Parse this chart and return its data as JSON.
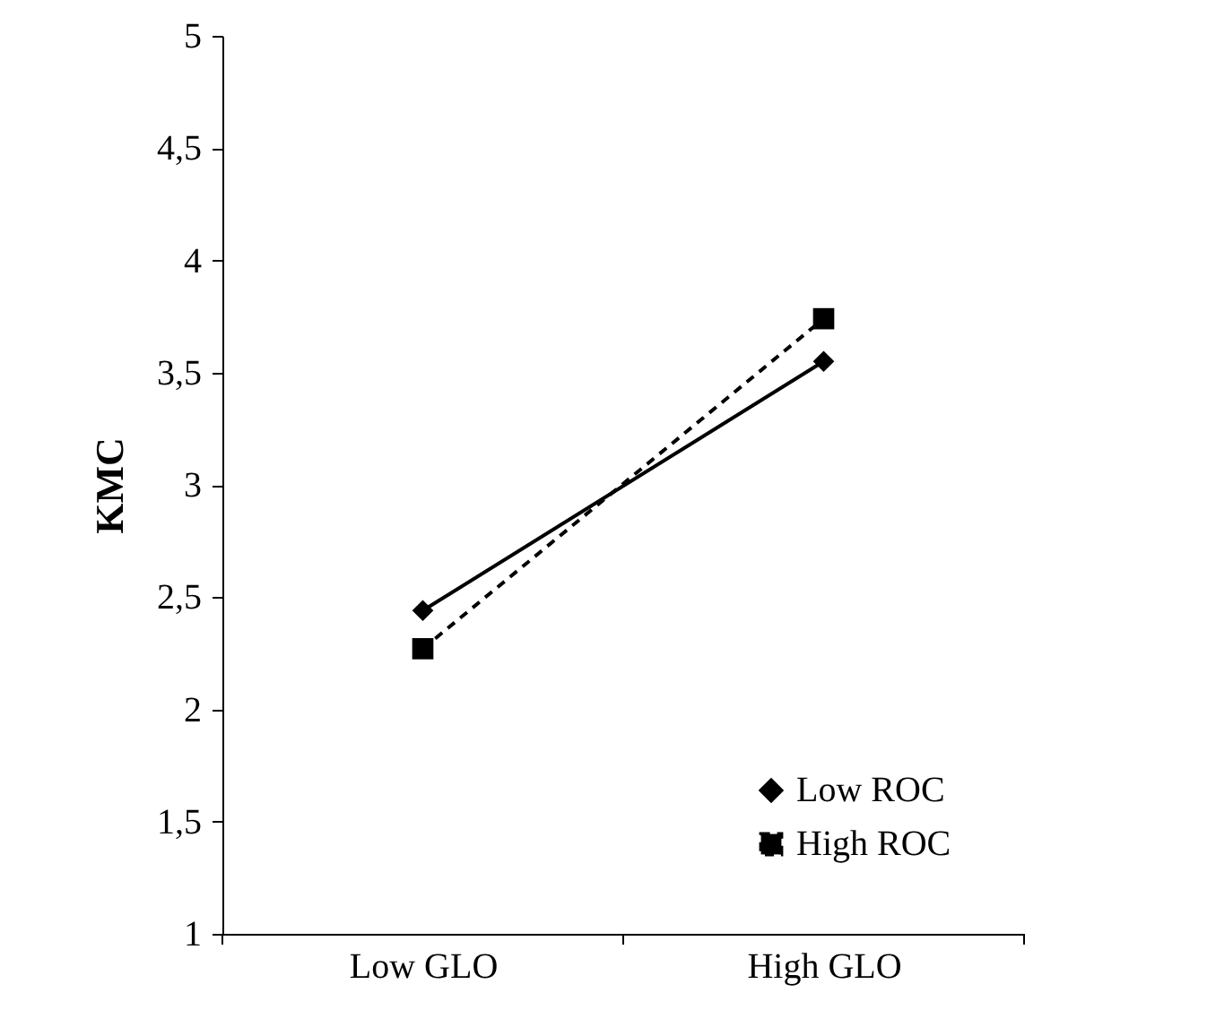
{
  "chart_data": {
    "type": "line",
    "ylabel": "KMC",
    "categories": [
      "Low GLO",
      "High GLO"
    ],
    "ylim": [
      1,
      5
    ],
    "yticks": [
      1,
      {
        "value": 1.5,
        "label": "1,5"
      },
      2,
      {
        "value": 2.5,
        "label": "2,5"
      },
      3,
      {
        "value": 3.5,
        "label": "3,5"
      },
      4,
      {
        "value": 4.5,
        "label": "4,5"
      },
      5
    ],
    "grid": false,
    "legend": "bottom right",
    "series": [
      {
        "name": "Low ROC",
        "color": "#000000",
        "values": [
          2.44,
          3.55
        ],
        "marker": "diamond",
        "line_style": "solid"
      },
      {
        "name": "High ROC",
        "color": "#000000",
        "values": [
          2.27,
          3.74
        ],
        "marker": "square",
        "line_style": "dashed"
      }
    ]
  }
}
